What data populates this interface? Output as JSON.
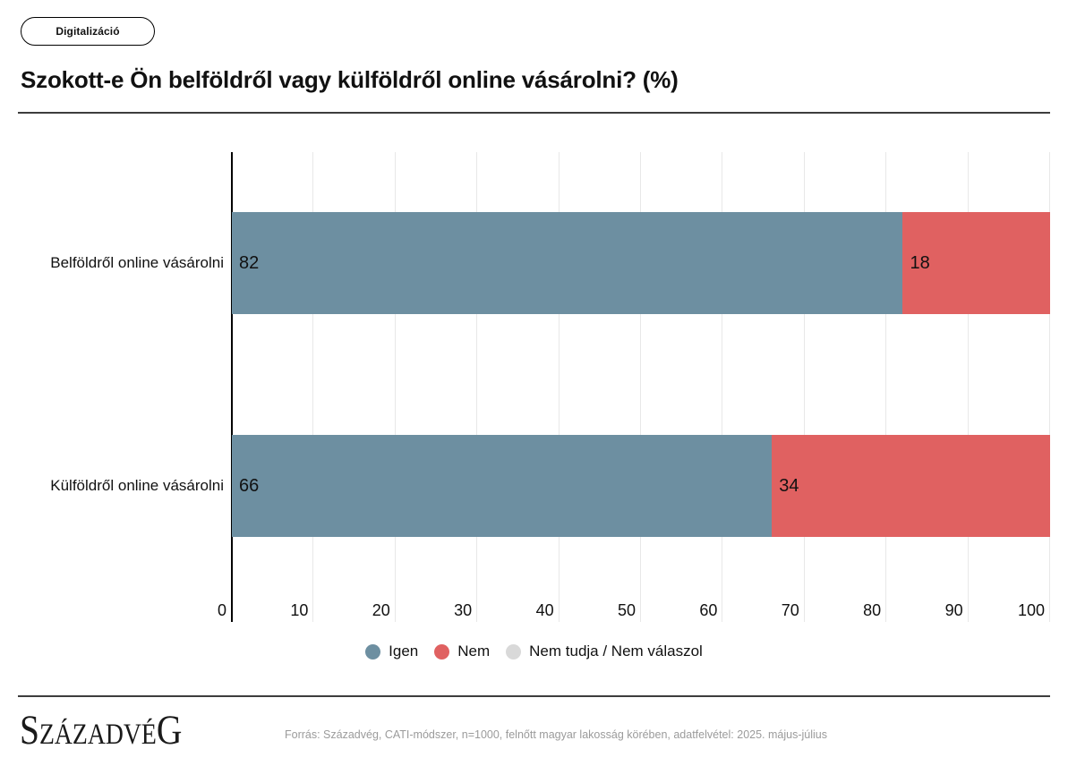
{
  "badge": {
    "label": "Digitalizáció"
  },
  "title": "Szokott-e Ön belföldről vagy külföldről online vásárolni? (%)",
  "chart_data": {
    "type": "bar",
    "orientation": "horizontal",
    "stacked": true,
    "title": "Szokott-e Ön belföldről vagy külföldről online vásárolni? (%)",
    "categories": [
      "Belföldről online vásárolni",
      "Külföldről online vásárolni"
    ],
    "series": [
      {
        "name": "Igen",
        "color": "#6d8fa1",
        "values": [
          82,
          66
        ]
      },
      {
        "name": "Nem",
        "color": "#e06161",
        "values": [
          18,
          34
        ]
      },
      {
        "name": "Nem tudja / Nem válaszol",
        "color": "#d9d9d9",
        "values": [
          0,
          0
        ]
      }
    ],
    "xlim": [
      0,
      100
    ],
    "x_ticks": [
      0,
      10,
      20,
      30,
      40,
      50,
      60,
      70,
      80,
      90,
      100
    ],
    "grid": true,
    "legend_position": "bottom"
  },
  "footer": {
    "logo_text": "SzázadvéG",
    "source": "Forrás: Századvég, CATI-módszer, n=1000, felnőtt magyar lakosság körében, adatfelvétel: 2025. május-július"
  }
}
